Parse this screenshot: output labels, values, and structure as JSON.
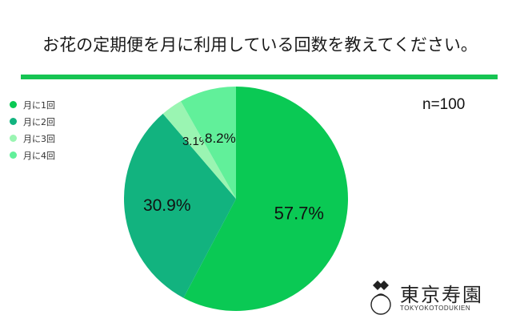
{
  "chart_data": {
    "type": "pie",
    "title": "お花の定期便を月に利用している回数を教えてください。",
    "annotation": "n=100",
    "legend_position": "left",
    "slices": [
      {
        "label": "月に1回",
        "value": 57.7,
        "value_label": "57.7%",
        "color": "#0ac954"
      },
      {
        "label": "月に2回",
        "value": 30.9,
        "value_label": "30.9%",
        "color": "#12b37f"
      },
      {
        "label": "月に3回",
        "value": 3.1,
        "value_label": "3.1%",
        "color": "#9af5b2"
      },
      {
        "label": "月に4回",
        "value": 8.2,
        "value_label": "8.2%",
        "color": "#61f09a"
      }
    ]
  },
  "logo": {
    "name": "東京寿園",
    "subtitle": "TOKYOKOTODUKIEN"
  }
}
